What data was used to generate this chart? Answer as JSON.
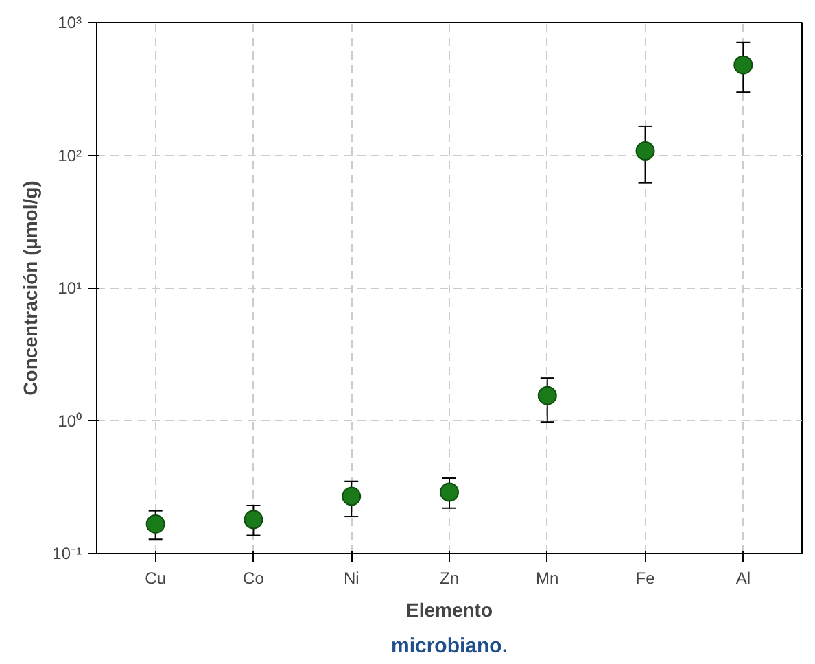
{
  "chart_data": {
    "type": "scatter",
    "xlabel": "Elemento",
    "ylabel": "Concentración (µmol/g)",
    "categories": [
      "Cu",
      "Co",
      "Ni",
      "Zn",
      "Mn",
      "Fe",
      "Al"
    ],
    "values": [
      0.167,
      0.18,
      0.27,
      0.29,
      1.55,
      108,
      480
    ],
    "errors": [
      [
        0.128,
        0.21
      ],
      [
        0.137,
        0.23
      ],
      [
        0.19,
        0.35
      ],
      [
        0.22,
        0.37
      ],
      [
        0.98,
        2.1
      ],
      [
        62,
        166
      ],
      [
        300,
        710
      ]
    ],
    "color": "#1a7a1a",
    "marker": "circle",
    "log": "y",
    "grid": true,
    "ylim": [
      0.1,
      1000
    ],
    "yticks": [
      {
        "value": 0.1,
        "label": "10⁻¹"
      },
      {
        "value": 1,
        "label": "10⁰"
      },
      {
        "value": 10,
        "label": "10¹"
      },
      {
        "value": 100,
        "label": "10²"
      },
      {
        "value": 1000,
        "label": "10³"
      }
    ],
    "annotations": [
      "microbiano."
    ]
  }
}
